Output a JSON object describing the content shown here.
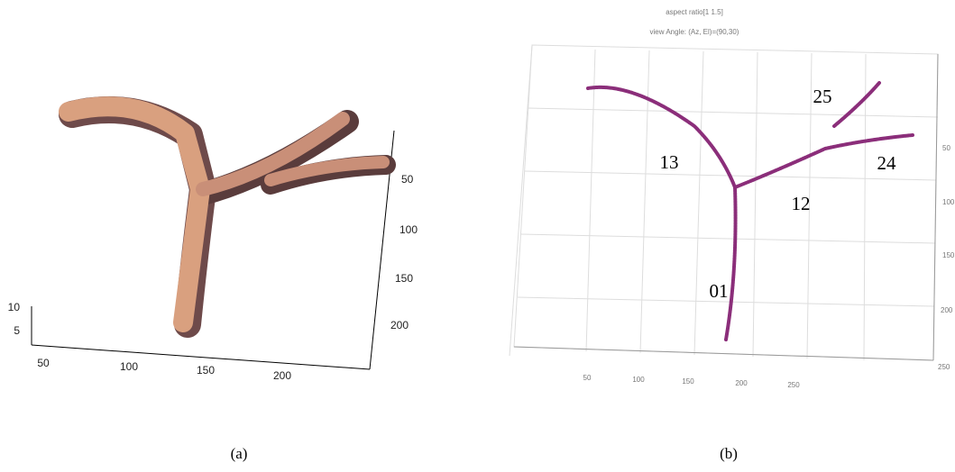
{
  "panel_a": {
    "x_ticks": [
      "50",
      "100",
      "150",
      "200"
    ],
    "y_ticks": [
      "50",
      "100",
      "150",
      "200"
    ],
    "z_ticks": [
      "10",
      "5"
    ],
    "caption": "(a)"
  },
  "panel_b": {
    "title_lines": [
      "aspect ratio[1 1.5]",
      "view Angle: (Az, El)=(90,30)"
    ],
    "branch_labels": [
      "13",
      "25",
      "24",
      "12",
      "01"
    ],
    "x_ticks": [
      "50",
      "100",
      "150",
      "200",
      "250"
    ],
    "y_ticks": [
      "50",
      "100",
      "150",
      "200",
      "250"
    ],
    "caption": "(b)"
  }
}
